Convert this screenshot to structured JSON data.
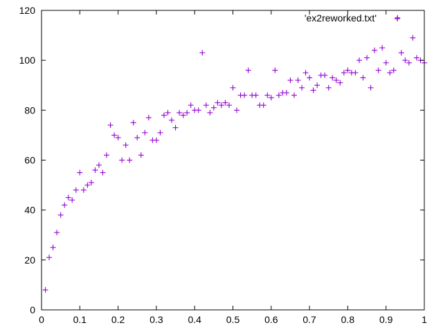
{
  "chart_data": {
    "type": "scatter",
    "title": "",
    "xlabel": "",
    "ylabel": "",
    "xlim": [
      0,
      1
    ],
    "ylim": [
      0,
      120
    ],
    "grid": false,
    "legend_position": "top-right",
    "marker": "plus",
    "x_ticks": [
      "0",
      "0.1",
      "0.2",
      "0.3",
      "0.4",
      "0.5",
      "0.6",
      "0.7",
      "0.8",
      "0.9",
      "1"
    ],
    "y_ticks": [
      "0",
      "20",
      "40",
      "60",
      "80",
      "100",
      "120"
    ],
    "series": [
      {
        "name": "'ex2reworked.txt'",
        "color": "#9400d3",
        "points": [
          [
            0.01,
            8
          ],
          [
            0.02,
            21
          ],
          [
            0.03,
            25
          ],
          [
            0.04,
            31
          ],
          [
            0.05,
            38
          ],
          [
            0.06,
            42
          ],
          [
            0.07,
            45
          ],
          [
            0.08,
            44
          ],
          [
            0.09,
            48
          ],
          [
            0.1,
            55
          ],
          [
            0.11,
            48
          ],
          [
            0.12,
            50
          ],
          [
            0.13,
            51
          ],
          [
            0.14,
            56
          ],
          [
            0.15,
            58
          ],
          [
            0.16,
            55
          ],
          [
            0.17,
            62
          ],
          [
            0.18,
            74
          ],
          [
            0.19,
            70
          ],
          [
            0.2,
            69
          ],
          [
            0.21,
            60
          ],
          [
            0.22,
            66
          ],
          [
            0.23,
            60
          ],
          [
            0.24,
            75
          ],
          [
            0.25,
            69
          ],
          [
            0.26,
            62
          ],
          [
            0.27,
            71
          ],
          [
            0.28,
            77
          ],
          [
            0.29,
            68
          ],
          [
            0.3,
            68
          ],
          [
            0.31,
            71
          ],
          [
            0.32,
            78
          ],
          [
            0.33,
            79
          ],
          [
            0.34,
            76
          ],
          [
            0.35,
            73
          ],
          [
            0.36,
            79
          ],
          [
            0.37,
            78
          ],
          [
            0.38,
            79
          ],
          [
            0.39,
            82
          ],
          [
            0.4,
            80
          ],
          [
            0.41,
            80
          ],
          [
            0.42,
            103
          ],
          [
            0.43,
            82
          ],
          [
            0.44,
            79
          ],
          [
            0.45,
            81
          ],
          [
            0.46,
            83
          ],
          [
            0.47,
            82
          ],
          [
            0.48,
            83
          ],
          [
            0.49,
            82
          ],
          [
            0.5,
            89
          ],
          [
            0.51,
            80
          ],
          [
            0.52,
            86
          ],
          [
            0.53,
            86
          ],
          [
            0.54,
            96
          ],
          [
            0.55,
            86
          ],
          [
            0.56,
            86
          ],
          [
            0.57,
            82
          ],
          [
            0.58,
            82
          ],
          [
            0.59,
            86
          ],
          [
            0.6,
            85
          ],
          [
            0.61,
            96
          ],
          [
            0.62,
            86
          ],
          [
            0.63,
            87
          ],
          [
            0.64,
            87
          ],
          [
            0.65,
            92
          ],
          [
            0.66,
            86
          ],
          [
            0.67,
            92
          ],
          [
            0.68,
            89
          ],
          [
            0.69,
            95
          ],
          [
            0.7,
            93
          ],
          [
            0.71,
            88
          ],
          [
            0.72,
            90
          ],
          [
            0.73,
            94
          ],
          [
            0.74,
            94
          ],
          [
            0.75,
            89
          ],
          [
            0.76,
            93
          ],
          [
            0.77,
            92
          ],
          [
            0.78,
            91
          ],
          [
            0.79,
            95
          ],
          [
            0.8,
            96
          ],
          [
            0.81,
            95
          ],
          [
            0.82,
            95
          ],
          [
            0.83,
            100
          ],
          [
            0.84,
            93
          ],
          [
            0.85,
            101
          ],
          [
            0.86,
            89
          ],
          [
            0.87,
            104
          ],
          [
            0.88,
            96
          ],
          [
            0.89,
            105
          ],
          [
            0.9,
            99
          ],
          [
            0.91,
            95
          ],
          [
            0.92,
            96
          ],
          [
            0.93,
            117
          ],
          [
            0.94,
            103
          ],
          [
            0.95,
            100
          ],
          [
            0.96,
            99
          ],
          [
            0.97,
            109
          ],
          [
            0.98,
            101
          ],
          [
            0.99,
            100
          ],
          [
            1.0,
            99
          ]
        ]
      }
    ]
  }
}
